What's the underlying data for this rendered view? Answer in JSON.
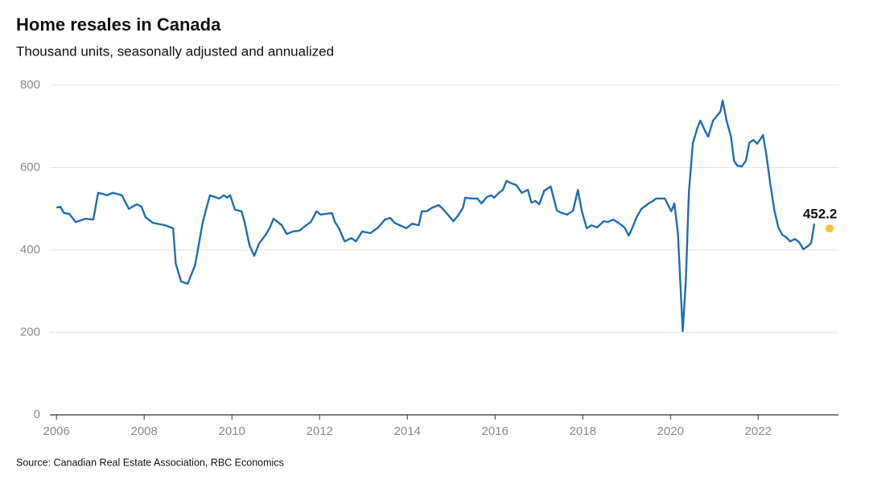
{
  "chart_data": {
    "type": "line",
    "title": "Home resales in Canada",
    "subtitle": "Thousand units, seasonally adjusted and annualized",
    "source": "Source: Canadian Real Estate Association, RBC Economics",
    "color": "#1f6db3",
    "x": [
      2006.0,
      2006.09,
      2006.17,
      2006.29,
      2006.44,
      2006.66,
      2006.84,
      2006.95,
      2007.16,
      2007.28,
      2007.49,
      2007.65,
      2007.83,
      2007.94,
      2008.03,
      2008.2,
      2008.48,
      2008.66,
      2008.72,
      2008.84,
      2008.99,
      2009.16,
      2009.34,
      2009.5,
      2009.71,
      2009.82,
      2009.89,
      2009.96,
      2010.07,
      2010.22,
      2010.29,
      2010.4,
      2010.51,
      2010.62,
      2010.77,
      2010.86,
      2010.95,
      2011.14,
      2011.25,
      2011.39,
      2011.54,
      2011.69,
      2011.8,
      2011.93,
      2012.02,
      2012.28,
      2012.35,
      2012.44,
      2012.57,
      2012.72,
      2012.83,
      2012.97,
      2013.16,
      2013.34,
      2013.49,
      2013.61,
      2013.71,
      2013.83,
      2013.98,
      2014.11,
      2014.26,
      2014.33,
      2014.44,
      2014.57,
      2014.72,
      2014.81,
      2014.94,
      2015.05,
      2015.16,
      2015.27,
      2015.32,
      2015.47,
      2015.6,
      2015.69,
      2015.82,
      2015.91,
      2015.98,
      2016.09,
      2016.18,
      2016.26,
      2016.37,
      2016.48,
      2016.61,
      2016.75,
      2016.83,
      2016.92,
      2017.01,
      2017.12,
      2017.27,
      2017.41,
      2017.52,
      2017.65,
      2017.78,
      2017.89,
      2017.98,
      2018.09,
      2018.2,
      2018.33,
      2018.48,
      2018.57,
      2018.7,
      2018.84,
      2018.95,
      2019.05,
      2019.12,
      2019.23,
      2019.34,
      2019.5,
      2019.6,
      2019.67,
      2019.76,
      2019.87,
      2019.94,
      2020.02,
      2020.09,
      2020.17,
      2020.28,
      2020.35,
      2020.42,
      2020.51,
      2020.61,
      2020.68,
      2020.79,
      2020.86,
      2020.97,
      2021.14,
      2021.19,
      2021.28,
      2021.38,
      2021.45,
      2021.52,
      2021.63,
      2021.72,
      2021.8,
      2021.89,
      2021.98,
      2022.11,
      2022.18,
      2022.28,
      2022.37,
      2022.46,
      2022.55,
      2022.64,
      2022.73,
      2022.84,
      2022.94,
      2023.03,
      2023.14,
      2023.21,
      2023.28
    ],
    "values": [
      503,
      505,
      490,
      488,
      468,
      476,
      474,
      539,
      533,
      539,
      533,
      500,
      511,
      505,
      480,
      466,
      460,
      453,
      367,
      324,
      318,
      363,
      470,
      533,
      525,
      533,
      527,
      533,
      498,
      494,
      468,
      412,
      386,
      416,
      437,
      453,
      476,
      460,
      439,
      445,
      447,
      460,
      468,
      494,
      486,
      490,
      468,
      453,
      421,
      429,
      421,
      445,
      441,
      455,
      474,
      478,
      466,
      460,
      453,
      464,
      460,
      494,
      494,
      503,
      509,
      500,
      484,
      470,
      484,
      503,
      527,
      525,
      525,
      513,
      529,
      533,
      527,
      539,
      546,
      568,
      562,
      558,
      539,
      546,
      515,
      519,
      511,
      544,
      554,
      496,
      490,
      486,
      496,
      546,
      494,
      453,
      460,
      455,
      470,
      468,
      474,
      464,
      455,
      435,
      451,
      480,
      500,
      513,
      519,
      525,
      525,
      525,
      511,
      494,
      513,
      441,
      203,
      324,
      539,
      659,
      695,
      714,
      689,
      675,
      714,
      736,
      763,
      714,
      675,
      617,
      605,
      603,
      617,
      661,
      667,
      658,
      679,
      636,
      558,
      496,
      455,
      437,
      431,
      421,
      427,
      418,
      402,
      410,
      418,
      464
    ],
    "highlight": {
      "x": 2023.63,
      "value": 452.2,
      "color": "#f2c23a"
    },
    "xlim": [
      2005.85,
      2023.83
    ],
    "xticks": [
      2006,
      2008,
      2010,
      2012,
      2014,
      2016,
      2018,
      2020,
      2022
    ],
    "ylim": [
      0,
      800
    ],
    "yticks": [
      0,
      200,
      400,
      600,
      800
    ],
    "grid": true
  }
}
